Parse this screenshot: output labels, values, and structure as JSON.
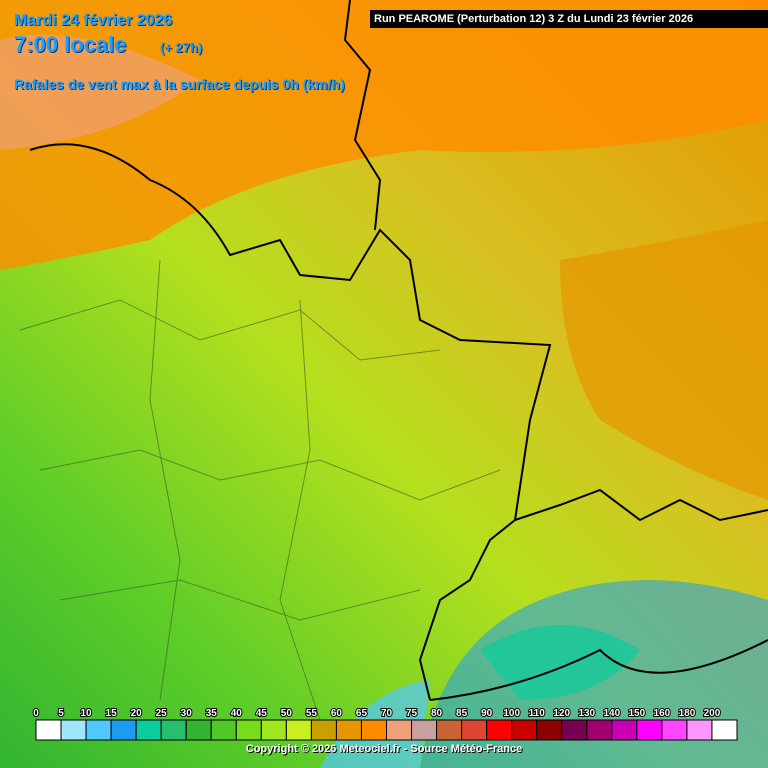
{
  "header": {
    "date": "Mardi 24 février 2026",
    "time": "7:00 locale",
    "lead": "(+ 27h)",
    "title": "Rafales de vent max à la surface depuis 0h (km/h)",
    "run": "Run PEAROME (Perturbation 12) 3 Z du Lundi 23 février 2026"
  },
  "legend": {
    "labels": [
      0,
      5,
      10,
      15,
      20,
      25,
      30,
      35,
      40,
      45,
      50,
      55,
      60,
      65,
      70,
      75,
      80,
      85,
      90,
      100,
      110,
      120,
      130,
      140,
      150,
      160,
      180,
      200
    ],
    "colors": [
      "#ffffff",
      "#a0e6ff",
      "#50c8ff",
      "#1e9bf0",
      "#0acc9c",
      "#28be6e",
      "#32b432",
      "#50c828",
      "#78dc1e",
      "#a0e61e",
      "#c8f01e",
      "#c8a000",
      "#e69600",
      "#ff8c00",
      "#f0a078",
      "#c8a0a0",
      "#c86432",
      "#dc4632",
      "#ff0000",
      "#c80000",
      "#8c0000",
      "#780050",
      "#a0006e",
      "#c800b4",
      "#ff00ff",
      "#ff46ff",
      "#ff96ff",
      "#ffffff"
    ]
  },
  "footer": {
    "copyright": "Copyright © 2026 Meteociel.fr - Source Météo-France"
  }
}
